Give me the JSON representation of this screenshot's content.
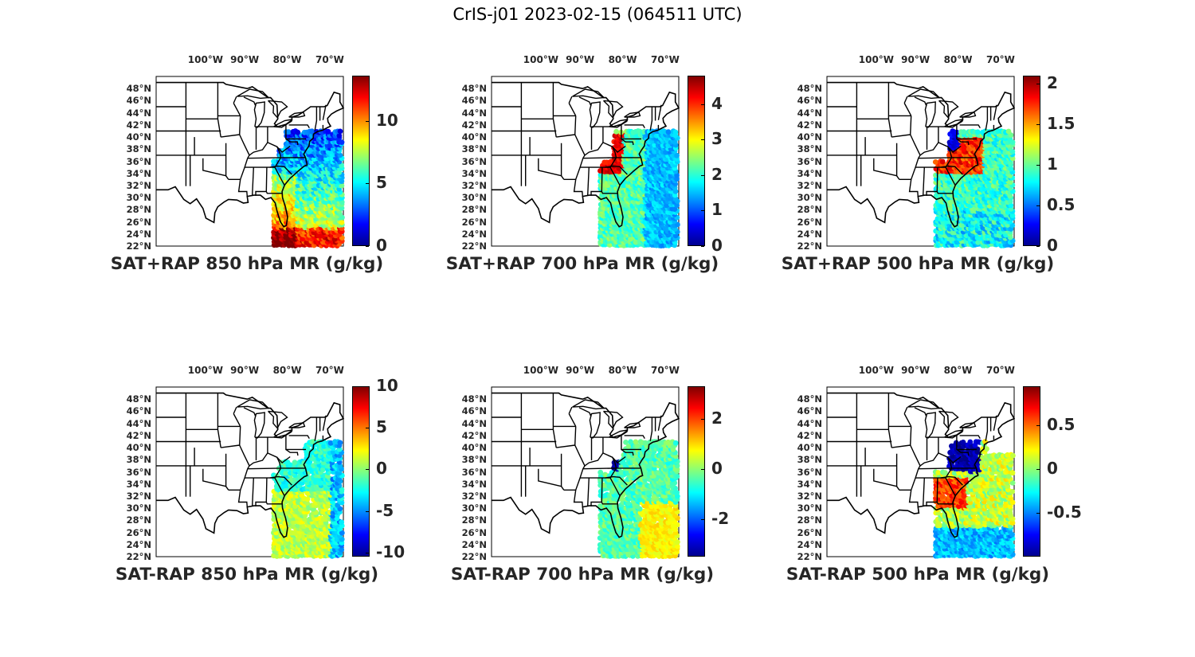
{
  "figure_title": "CrIS-j01 2023-02-15 (064511 UTC)",
  "lon_labels": [
    "100°W",
    "90°W",
    "80°W",
    "70°W"
  ],
  "lat_labels": [
    "48°N",
    "46°N",
    "44°N",
    "42°N",
    "40°N",
    "38°N",
    "36°N",
    "34°N",
    "32°N",
    "30°N",
    "28°N",
    "26°N",
    "24°N",
    "22°N"
  ],
  "colormap": "jet",
  "panels": [
    {
      "title": "SAT+RAP 850 hPa MR (g/kg)",
      "clim": [
        0,
        13.6
      ],
      "ticks": [
        "10",
        "5",
        "0"
      ],
      "tick_values": [
        10,
        5,
        0
      ],
      "field": "sum850"
    },
    {
      "title": "SAT+RAP 700 hPa MR (g/kg)",
      "clim": [
        0,
        4.8
      ],
      "ticks": [
        "4",
        "3",
        "2",
        "1",
        "0"
      ],
      "tick_values": [
        4,
        3,
        2,
        1,
        0
      ],
      "field": "sum700"
    },
    {
      "title": "SAT+RAP 500 hPa MR (g/kg)",
      "clim": [
        0,
        2.1
      ],
      "ticks": [
        "2",
        "1.5",
        "1",
        "0.5",
        "0"
      ],
      "tick_values": [
        2,
        1.5,
        1,
        0.5,
        0
      ],
      "field": "sum500"
    },
    {
      "title": "SAT-RAP 850 hPa MR (g/kg)",
      "clim": [
        -10.5,
        10
      ],
      "ticks": [
        "10",
        "5",
        "0",
        "-5",
        "-10"
      ],
      "tick_values": [
        10,
        5,
        0,
        -5,
        -10
      ],
      "field": "diff850"
    },
    {
      "title": "SAT-RAP 700 hPa MR (g/kg)",
      "clim": [
        -3.5,
        3.3
      ],
      "ticks": [
        "2",
        "0",
        "-2"
      ],
      "tick_values": [
        2,
        0,
        -2
      ],
      "field": "diff700"
    },
    {
      "title": "SAT-RAP 500 hPa MR (g/kg)",
      "clim": [
        -1,
        0.95
      ],
      "ticks": [
        "0.5",
        "0",
        "-0.5"
      ],
      "tick_values": [
        0.5,
        0,
        -0.5
      ],
      "field": "diff500"
    }
  ]
}
